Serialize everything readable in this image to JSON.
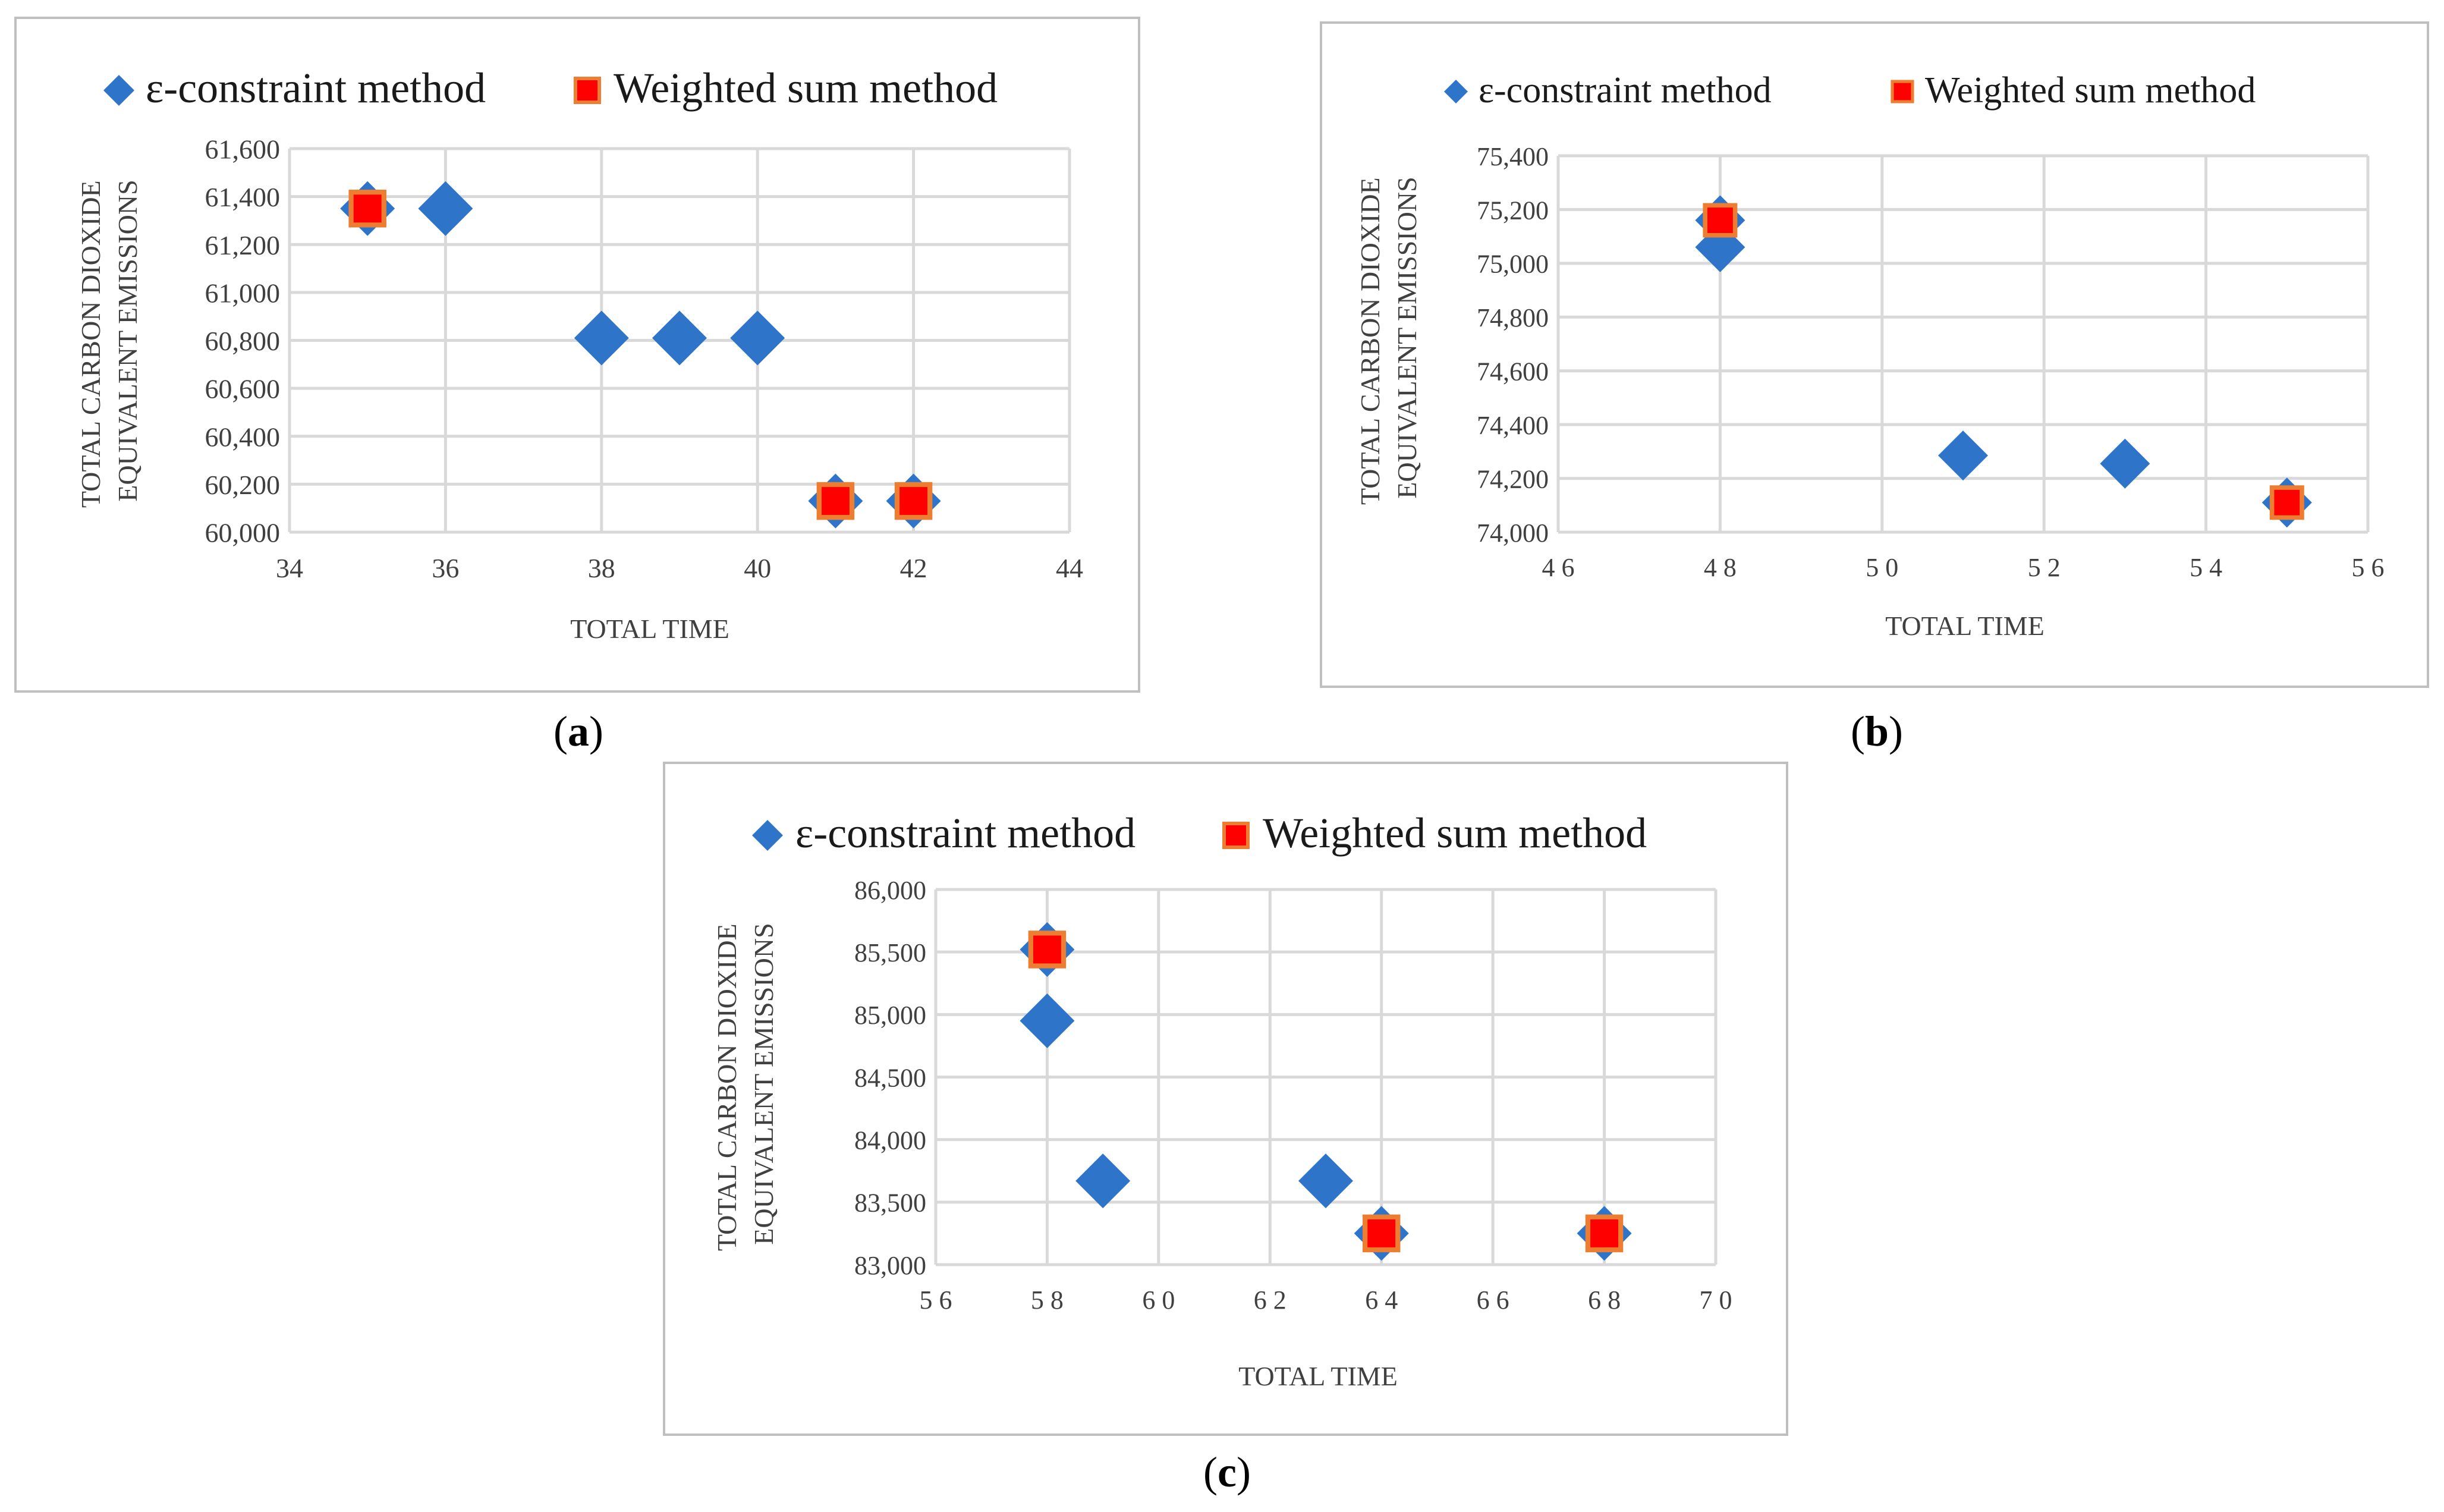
{
  "colors": {
    "e_marker": "#2E75C9",
    "ws_fill": "#FF0000",
    "ws_border": "#ED7D31",
    "grid": "#D9D9D9",
    "frame": "#BFBFBF",
    "text": "#404040"
  },
  "chart_data": [
    {
      "id": "a",
      "type": "scatter",
      "caption": "a",
      "xlabel": "TOTAL TIME",
      "ylabel": [
        "TOTAL CARBON DIOXIDE",
        "EQUIVALENT EMISSIONS"
      ],
      "xlim": [
        34,
        44
      ],
      "xticks": [
        34,
        36,
        38,
        40,
        42,
        44
      ],
      "xtick_labels": [
        "34",
        "36",
        "38",
        "40",
        "42",
        "44"
      ],
      "ylim": [
        60000,
        61600
      ],
      "yticks": [
        60000,
        60200,
        60400,
        60600,
        60800,
        61000,
        61200,
        61400,
        61600
      ],
      "ytick_labels": [
        "60,000",
        "60,200",
        "60,400",
        "60,600",
        "60,800",
        "61,000",
        "61,200",
        "61,400",
        "61,600"
      ],
      "legend": [
        "ε-constraint method",
        "Weighted sum method"
      ],
      "series": [
        {
          "name": "ε-constraint method",
          "marker": "diamond",
          "points": [
            [
              35,
              61350
            ],
            [
              36,
              61350
            ],
            [
              38,
              60810
            ],
            [
              39,
              60810
            ],
            [
              40,
              60810
            ],
            [
              41,
              60130
            ],
            [
              42,
              60130
            ]
          ]
        },
        {
          "name": "Weighted sum method",
          "marker": "square",
          "points": [
            [
              35,
              61350
            ],
            [
              41,
              60130
            ],
            [
              42,
              60130
            ]
          ]
        }
      ]
    },
    {
      "id": "b",
      "type": "scatter",
      "caption": "b",
      "xlabel": "TOTAL TIME",
      "ylabel": [
        "TOTAL CARBON DIOXIDE",
        "EQUIVALENT EMISSIONS"
      ],
      "xlim": [
        46,
        56
      ],
      "xticks": [
        46,
        48,
        50,
        52,
        54,
        56
      ],
      "xtick_labels": [
        "4 6",
        "4 8",
        "5 0",
        "5 2",
        "5 4",
        "5 6"
      ],
      "ylim": [
        74000,
        75400
      ],
      "yticks": [
        74000,
        74200,
        74400,
        74600,
        74800,
        75000,
        75200,
        75400
      ],
      "ytick_labels": [
        "74,000",
        "74,200",
        "74,400",
        "74,600",
        "74,800",
        "75,000",
        "75,200",
        "75,400"
      ],
      "legend": [
        "ε-constraint method",
        "Weighted sum method"
      ],
      "series": [
        {
          "name": "ε-constraint method",
          "marker": "diamond",
          "points": [
            [
              48,
              75160
            ],
            [
              48,
              75060
            ],
            [
              51,
              74285
            ],
            [
              53,
              74255
            ],
            [
              55,
              74110
            ]
          ]
        },
        {
          "name": "Weighted sum method",
          "marker": "square",
          "points": [
            [
              48,
              75160
            ],
            [
              55,
              74110
            ]
          ]
        }
      ]
    },
    {
      "id": "c",
      "type": "scatter",
      "caption": "c",
      "xlabel": "TOTAL TIME",
      "ylabel": [
        "TOTAL CARBON DIOXIDE",
        "EQUIVALENT EMISSIONS"
      ],
      "xlim": [
        56,
        70
      ],
      "xticks": [
        56,
        58,
        60,
        62,
        64,
        66,
        68,
        70
      ],
      "xtick_labels": [
        "5 6",
        "5 8",
        "6 0",
        "6 2",
        "6 4",
        "6 6",
        "6 8",
        "7 0"
      ],
      "ylim": [
        83000,
        86000
      ],
      "yticks": [
        83000,
        83500,
        84000,
        84500,
        85000,
        85500,
        86000
      ],
      "ytick_labels": [
        "83,000",
        "83,500",
        "84,000",
        "84,500",
        "85,000",
        "85,500",
        "86,000"
      ],
      "legend": [
        "ε-constraint method",
        "Weighted sum method"
      ],
      "series": [
        {
          "name": "ε-constraint method",
          "marker": "diamond",
          "points": [
            [
              58,
              85520
            ],
            [
              58,
              84950
            ],
            [
              59,
              83670
            ],
            [
              63,
              83670
            ],
            [
              64,
              83250
            ],
            [
              68,
              83250
            ]
          ]
        },
        {
          "name": "Weighted sum method",
          "marker": "square",
          "points": [
            [
              58,
              85520
            ],
            [
              64,
              83250
            ],
            [
              68,
              83250
            ]
          ]
        }
      ]
    }
  ]
}
